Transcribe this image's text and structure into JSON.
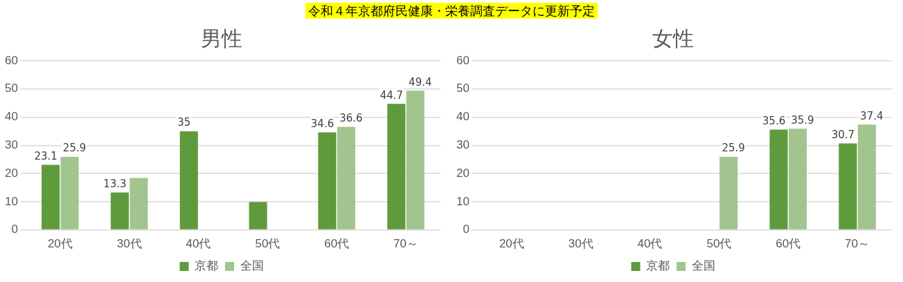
{
  "chart_data": [
    {
      "type": "bar",
      "title": "男性",
      "categories": [
        "20代",
        "30代",
        "40代",
        "50代",
        "60代",
        "70～"
      ],
      "series": [
        {
          "name": "京都",
          "color": "#5f9a3c",
          "values": [
            23.1,
            13.3,
            35,
            9.9,
            34.6,
            44.7
          ],
          "value_labels": [
            "23.1",
            "13.3",
            "35",
            null,
            "34.6",
            "44.7"
          ]
        },
        {
          "name": "全国",
          "color": "#a2c48e",
          "values": [
            25.9,
            18.4,
            null,
            null,
            36.6,
            49.4
          ],
          "value_labels": [
            "25.9",
            null,
            null,
            null,
            "36.6",
            "49.4"
          ]
        }
      ],
      "ylim": [
        0,
        60
      ],
      "yticks": [
        0,
        10,
        20,
        30,
        40,
        50,
        60
      ],
      "grid": "y",
      "legend": "bottom",
      "annotations": [
        "令和４年京都府民健康・栄養調査データに更新予定"
      ]
    },
    {
      "type": "bar",
      "title": "女性",
      "categories": [
        "20代",
        "30代",
        "40代",
        "50代",
        "60代",
        "70～"
      ],
      "series": [
        {
          "name": "京都",
          "color": "#5f9a3c",
          "values": [
            null,
            null,
            null,
            null,
            35.6,
            30.7
          ],
          "value_labels": [
            null,
            null,
            null,
            null,
            "35.6",
            "30.7"
          ]
        },
        {
          "name": "全国",
          "color": "#a2c48e",
          "values": [
            null,
            null,
            null,
            25.9,
            35.9,
            37.4
          ],
          "value_labels": [
            null,
            null,
            null,
            "25.9",
            "35.9",
            "37.4"
          ]
        }
      ],
      "ylim": [
        0,
        60
      ],
      "yticks": [
        0,
        10,
        20,
        30,
        40,
        50,
        60
      ],
      "grid": "y",
      "legend": "bottom"
    }
  ]
}
